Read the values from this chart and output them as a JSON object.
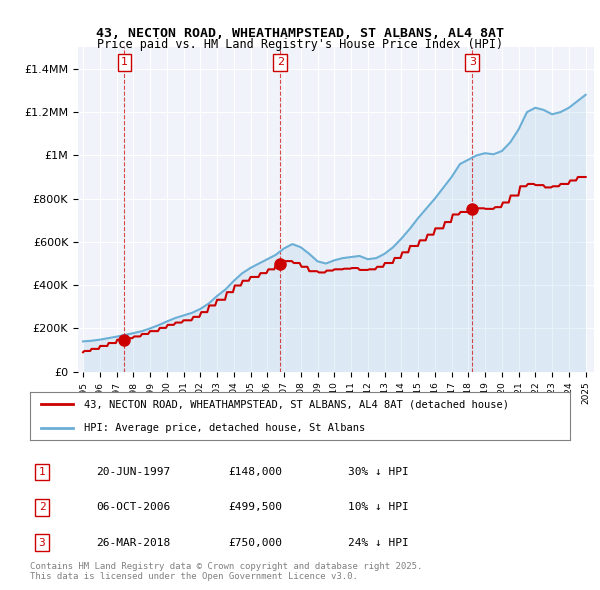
{
  "title1": "43, NECTON ROAD, WHEATHAMPSTEAD, ST ALBANS, AL4 8AT",
  "title2": "Price paid vs. HM Land Registry's House Price Index (HPI)",
  "legend_line1": "43, NECTON ROAD, WHEATHAMPSTEAD, ST ALBANS, AL4 8AT (detached house)",
  "legend_line2": "HPI: Average price, detached house, St Albans",
  "footer": "Contains HM Land Registry data © Crown copyright and database right 2025.\nThis data is licensed under the Open Government Licence v3.0.",
  "sale_points": [
    {
      "num": 1,
      "date": "20-JUN-1997",
      "price": 148000,
      "year": 1997.47,
      "label": "30% ↓ HPI"
    },
    {
      "num": 2,
      "date": "06-OCT-2006",
      "price": 499500,
      "year": 2006.77,
      "label": "10% ↓ HPI"
    },
    {
      "num": 3,
      "date": "26-MAR-2018",
      "price": 750000,
      "year": 2018.23,
      "label": "24% ↓ HPI"
    }
  ],
  "red_color": "#cc0000",
  "blue_color": "#6baed6",
  "background_color": "#e8f0f8",
  "plot_bg": "#f0f4fa",
  "ylim": [
    0,
    1500000
  ],
  "xlim_start": 1995,
  "xlim_end": 2025.5
}
